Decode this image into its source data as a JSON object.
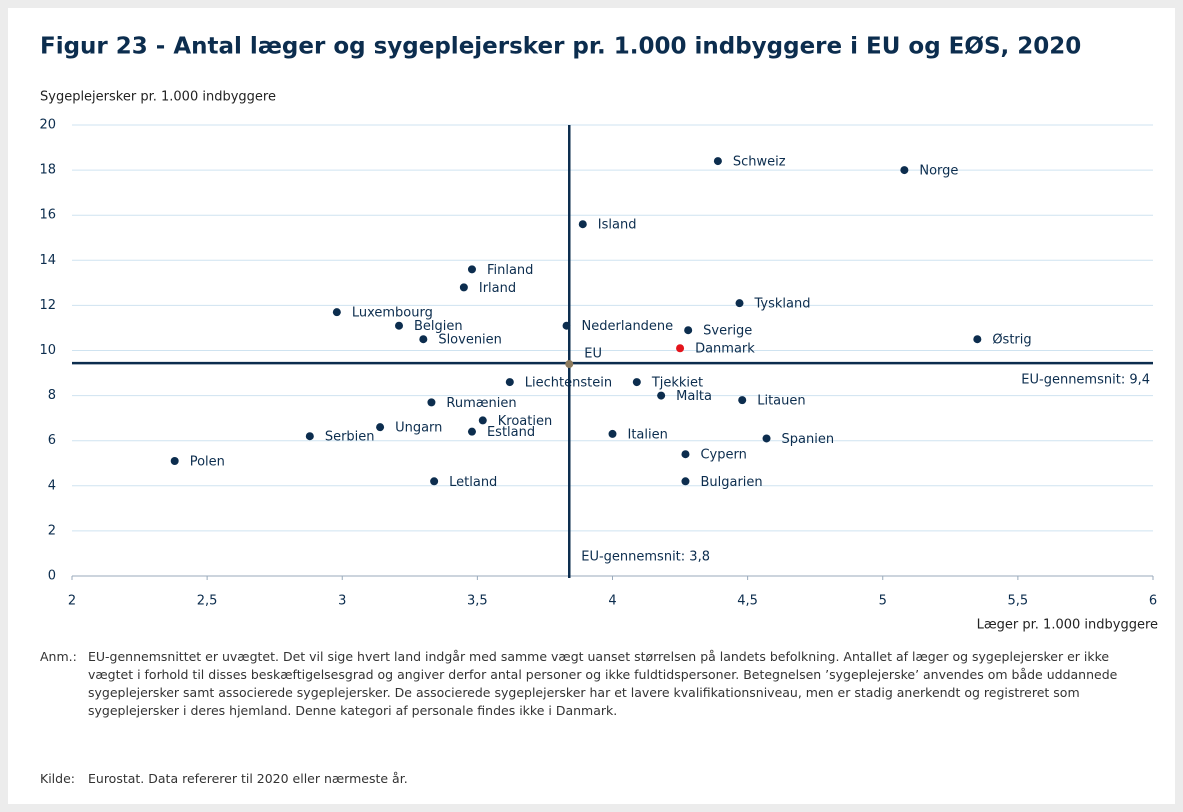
{
  "chart_data": {
    "type": "scatter",
    "title": "Figur 23 - Antal læger og sygeplejersker pr. 1.000 indbyggere i EU og EØS, 2020",
    "ylabel": "Sygeplejersker pr. 1.000 indbyggere",
    "xlabel": "Læger pr. 1.000 indbyggere",
    "xlim": [
      2,
      6
    ],
    "xticks": [
      2,
      {
        "value": 2.5,
        "label": "2,5"
      },
      3,
      {
        "value": 3.5,
        "label": "3,5"
      },
      4,
      {
        "value": 4.5,
        "label": "4,5"
      },
      5,
      {
        "value": 5.5,
        "label": "5,5"
      },
      6
    ],
    "ylim": [
      0,
      20
    ],
    "yticks": [
      0,
      2,
      4,
      6,
      8,
      10,
      12,
      14,
      16,
      18,
      20
    ],
    "grid": true,
    "points": [
      {
        "name": "Schweiz",
        "x": 4.39,
        "y": 18.4,
        "color": "#0c2d4e"
      },
      {
        "name": "Norge",
        "x": 5.08,
        "y": 18.0,
        "color": "#0c2d4e"
      },
      {
        "name": "Island",
        "x": 3.89,
        "y": 15.6,
        "color": "#0c2d4e"
      },
      {
        "name": "Finland",
        "x": 3.48,
        "y": 13.6,
        "color": "#0c2d4e"
      },
      {
        "name": "Irland",
        "x": 3.45,
        "y": 12.8,
        "color": "#0c2d4e"
      },
      {
        "name": "Tyskland",
        "x": 4.47,
        "y": 12.1,
        "color": "#0c2d4e"
      },
      {
        "name": "Luxembourg",
        "x": 2.98,
        "y": 11.7,
        "color": "#0c2d4e"
      },
      {
        "name": "Belgien",
        "x": 3.21,
        "y": 11.1,
        "color": "#0c2d4e"
      },
      {
        "name": "Nederlandene",
        "x": 3.83,
        "y": 11.1,
        "color": "#0c2d4e"
      },
      {
        "name": "Sverige",
        "x": 4.28,
        "y": 10.9,
        "color": "#0c2d4e"
      },
      {
        "name": "Slovenien",
        "x": 3.3,
        "y": 10.5,
        "color": "#0c2d4e"
      },
      {
        "name": "Danmark",
        "x": 4.25,
        "y": 10.1,
        "color": "#e4141b"
      },
      {
        "name": "Østrig",
        "x": 5.35,
        "y": 10.5,
        "color": "#0c2d4e"
      },
      {
        "name": "EU",
        "x": 3.84,
        "y": 9.4,
        "color": "#8c7b5e"
      },
      {
        "name": "Liechtenstein",
        "x": 3.62,
        "y": 8.6,
        "color": "#0c2d4e"
      },
      {
        "name": "Tjekkiet",
        "x": 4.09,
        "y": 8.6,
        "color": "#0c2d4e"
      },
      {
        "name": "Malta",
        "x": 4.18,
        "y": 8.0,
        "color": "#0c2d4e"
      },
      {
        "name": "Litauen",
        "x": 4.48,
        "y": 7.8,
        "color": "#0c2d4e"
      },
      {
        "name": "Rumænien",
        "x": 3.33,
        "y": 7.7,
        "color": "#0c2d4e"
      },
      {
        "name": "Kroatien",
        "x": 3.52,
        "y": 6.9,
        "color": "#0c2d4e"
      },
      {
        "name": "Ungarn",
        "x": 3.14,
        "y": 6.6,
        "color": "#0c2d4e"
      },
      {
        "name": "Estland",
        "x": 3.48,
        "y": 6.4,
        "color": "#0c2d4e"
      },
      {
        "name": "Serbien",
        "x": 2.88,
        "y": 6.2,
        "color": "#0c2d4e"
      },
      {
        "name": "Italien",
        "x": 4.0,
        "y": 6.3,
        "color": "#0c2d4e"
      },
      {
        "name": "Spanien",
        "x": 4.57,
        "y": 6.1,
        "color": "#0c2d4e"
      },
      {
        "name": "Cypern",
        "x": 4.27,
        "y": 5.4,
        "color": "#0c2d4e"
      },
      {
        "name": "Polen",
        "x": 2.38,
        "y": 5.1,
        "color": "#0c2d4e"
      },
      {
        "name": "Letland",
        "x": 3.34,
        "y": 4.2,
        "color": "#0c2d4e"
      },
      {
        "name": "Bulgarien",
        "x": 4.27,
        "y": 4.2,
        "color": "#0c2d4e"
      }
    ],
    "reference_lines": {
      "x": {
        "value": 3.84,
        "label": "EU-gennemsnit: 3,8"
      },
      "y": {
        "value": 9.44,
        "label": "EU-gennemsnit: 9,4"
      },
      "color": "#0c2d4e"
    }
  },
  "notes": {
    "anm_label": "Anm.:",
    "anm": "EU-gennemsnittet er uvægtet. Det vil sige hvert land indgår med samme vægt uanset størrelsen på landets befolkning. Antallet af læger og sygeplejersker er ikke vægtet i forhold til disses beskæftigelsesgrad og angiver derfor antal personer og ikke fuldtidspersoner. Betegnelsen ’sygeplejerske’ anvendes om både uddannede sygeplejersker samt associerede sygeplejersker. De associerede sygeplejersker har et lavere kvalifikationsniveau, men er stadig anerkendt og registreret som sygeplejersker i deres hjemland. Denne kategori af personale findes ikke i Danmark.",
    "kilde_label": "Kilde:",
    "kilde": "Eurostat. Data refererer til 2020 eller nærmeste år."
  }
}
